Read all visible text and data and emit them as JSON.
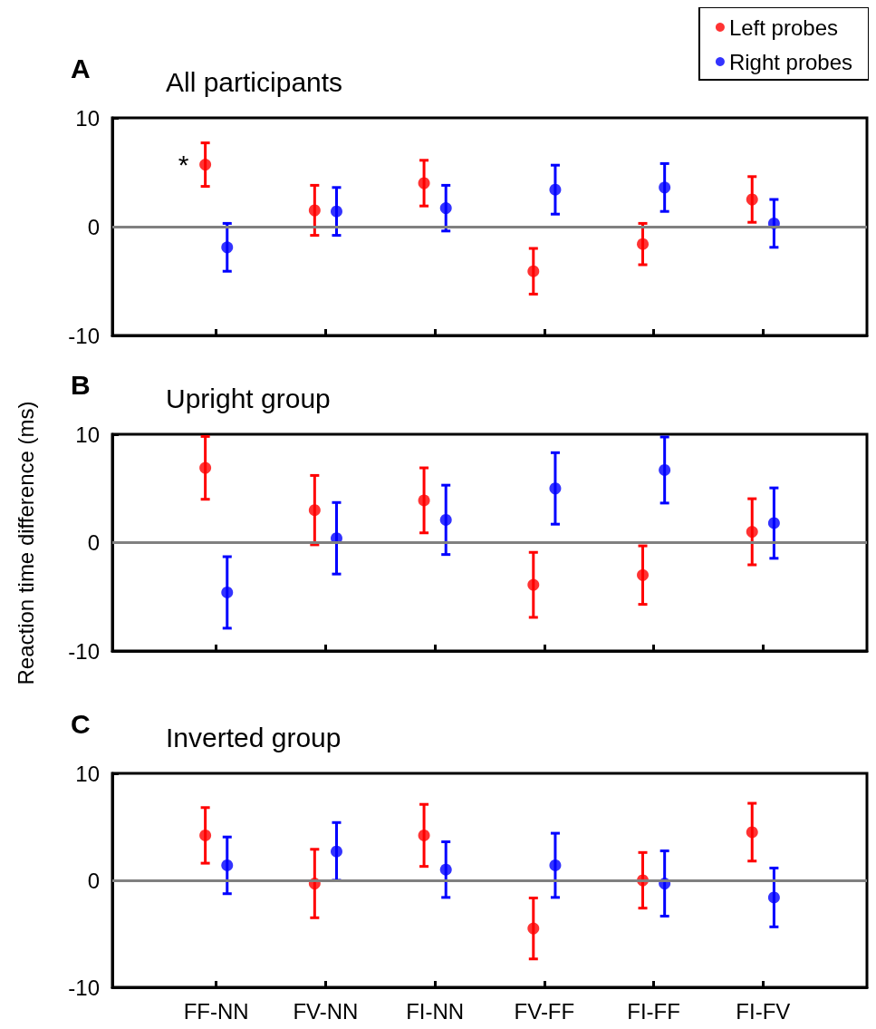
{
  "chart_data": [
    {
      "type": "scatter",
      "title": "All participants",
      "annotations": [
        "A",
        "*"
      ],
      "categories": [
        null,
        null,
        null,
        null,
        null,
        null
      ],
      "ylim": [
        -10,
        10
      ],
      "yticks": [
        -10,
        0,
        10
      ],
      "tick_labels": "y",
      "grid": false,
      "legend": "top right",
      "marker": "circle",
      "ref_lines": [
        {
          "axis": "y",
          "value": 0,
          "color": "#808080"
        }
      ],
      "series": [
        {
          "name": "Left probes",
          "color": "#ff0000",
          "values": [
            5.7,
            1.5,
            4.0,
            -4.1,
            -1.6,
            2.5
          ],
          "errors": [
            2.0,
            2.3,
            2.1,
            2.1,
            1.9,
            2.1
          ]
        },
        {
          "name": "Right probes",
          "color": "#0000ff",
          "values": [
            -1.9,
            1.4,
            1.7,
            3.4,
            3.6,
            0.3
          ],
          "errors": [
            2.2,
            2.2,
            2.1,
            2.25,
            2.2,
            2.2
          ]
        }
      ]
    },
    {
      "type": "scatter",
      "title": "Upright group",
      "ylabel": "Reaction time difference (ms)",
      "annotations": [
        "B"
      ],
      "categories": [
        null,
        null,
        null,
        null,
        null,
        null
      ],
      "ylim": [
        -10,
        10
      ],
      "yticks": [
        -10,
        0,
        10
      ],
      "tick_labels": "y",
      "grid": false,
      "marker": "circle",
      "ref_lines": [
        {
          "axis": "y",
          "value": 0,
          "color": "#808080"
        }
      ],
      "series": [
        {
          "color": "#ff0000",
          "values": [
            6.9,
            3.0,
            3.9,
            -3.9,
            -3.0,
            1.0
          ],
          "errors": [
            2.9,
            3.2,
            3.0,
            3.0,
            2.7,
            3.05
          ]
        },
        {
          "color": "#0000ff",
          "values": [
            -4.6,
            0.4,
            2.1,
            5.0,
            6.7,
            1.8
          ],
          "errors": [
            3.3,
            3.3,
            3.2,
            3.3,
            3.05,
            3.25
          ]
        }
      ]
    },
    {
      "type": "scatter",
      "title": "Inverted group",
      "annotations": [
        "C"
      ],
      "categories": [
        "FF-NN",
        "FV-NN",
        "FI-NN",
        "FV-FF",
        "FI-FF",
        "FI-FV"
      ],
      "ylim": [
        -10,
        10
      ],
      "yticks": [
        -10,
        0,
        10
      ],
      "grid": false,
      "marker": "circle",
      "ref_lines": [
        {
          "axis": "y",
          "value": 0,
          "color": "#808080"
        }
      ],
      "series": [
        {
          "color": "#ff0000",
          "values": [
            4.2,
            -0.3,
            4.2,
            -4.5,
            0.0,
            4.5
          ],
          "errors": [
            2.6,
            3.2,
            2.9,
            2.85,
            2.6,
            2.7
          ]
        },
        {
          "color": "#0000ff",
          "values": [
            1.4,
            2.7,
            1.0,
            1.4,
            -0.3,
            -1.6
          ],
          "errors": [
            2.65,
            2.7,
            2.6,
            3.0,
            3.05,
            2.75
          ]
        }
      ]
    }
  ]
}
